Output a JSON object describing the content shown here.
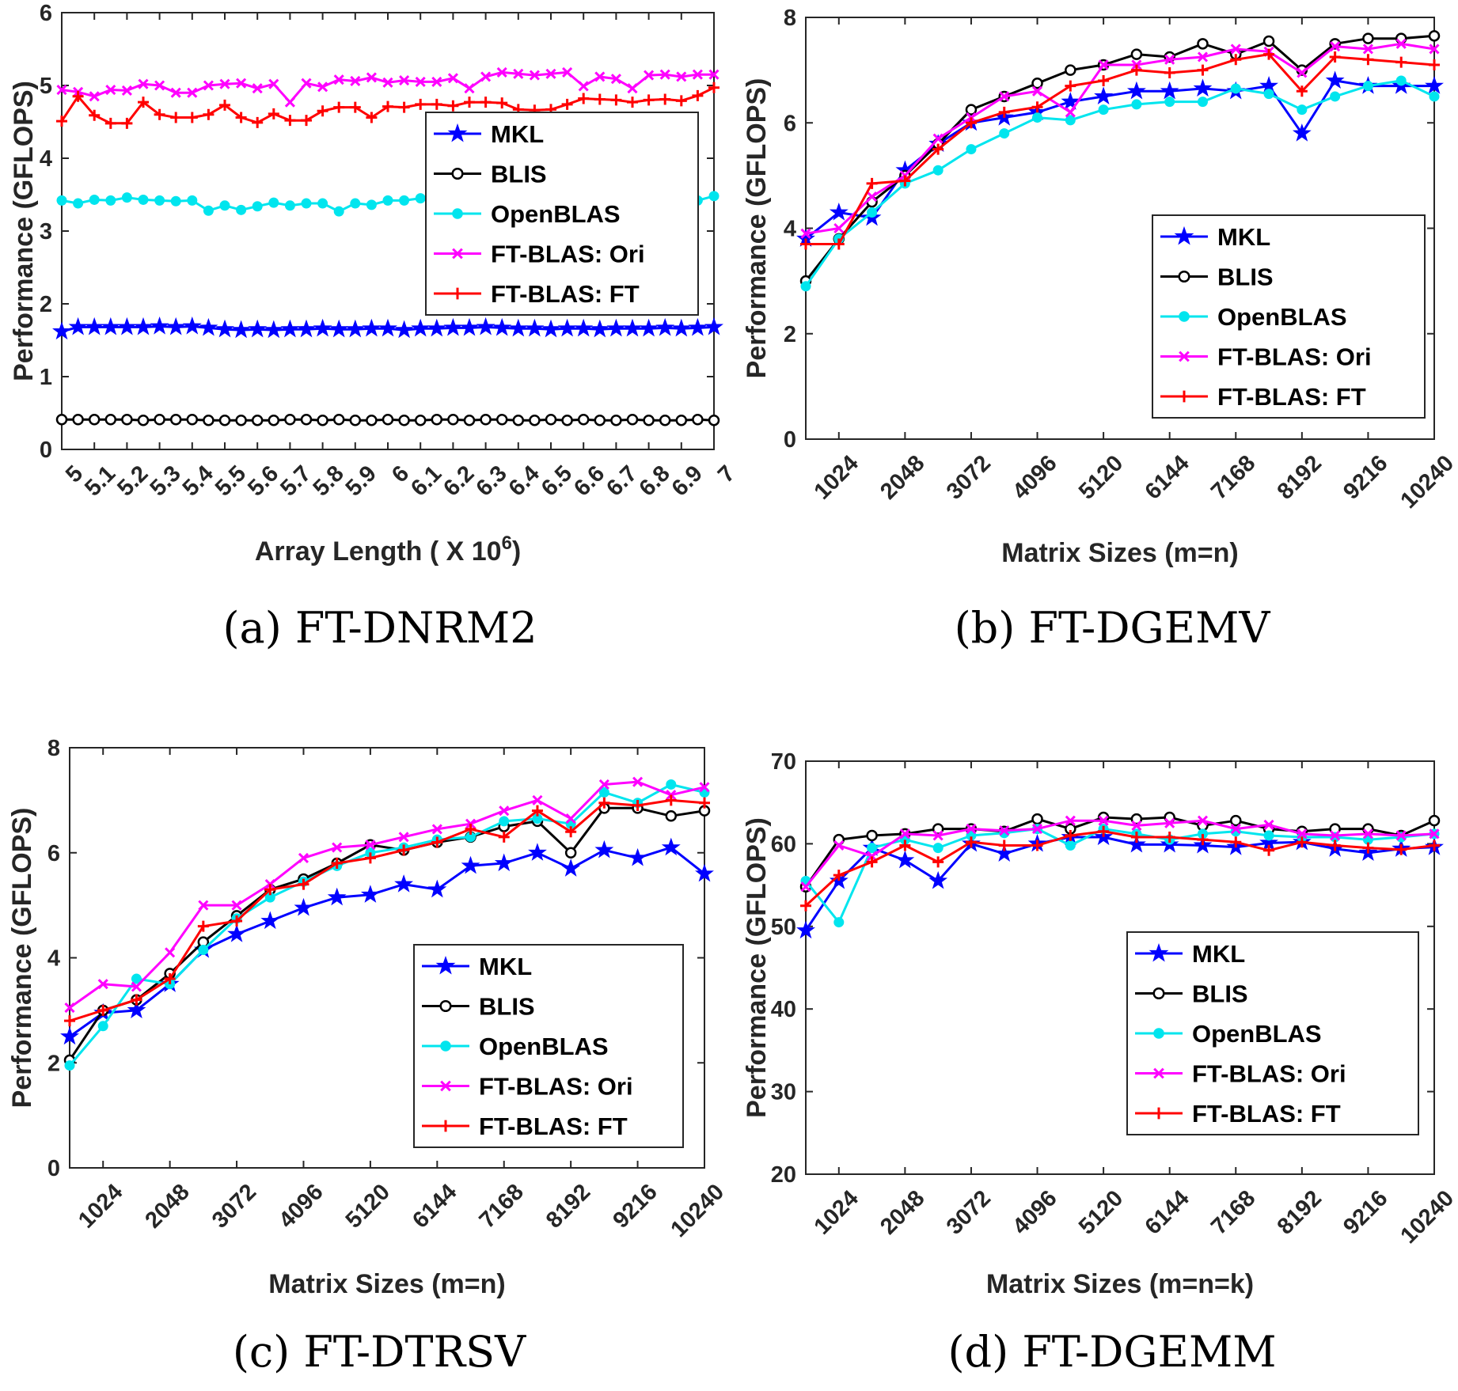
{
  "legend_labels": [
    "MKL",
    "BLIS",
    "OpenBLAS",
    "FT-BLAS: Ori",
    "FT-BLAS: FT"
  ],
  "series_colors": {
    "MKL": "#0000ff",
    "BLIS": "#000000",
    "OpenBLAS": "#00e5ee",
    "FT-BLAS: Ori": "#ff00ff",
    "FT-BLAS: FT": "#ff0000"
  },
  "chart_data": [
    {
      "type": "line",
      "caption": "(a) FT-DNRM2",
      "xlabel": "Array Length ( X 10",
      "xlabel_sup": "6",
      "xlabel_tail": ")",
      "ylabel": "Performance (GFLOPS)",
      "xlim": [
        5,
        7
      ],
      "ylim": [
        0,
        6
      ],
      "yticks": [
        0,
        1,
        2,
        3,
        4,
        5,
        6
      ],
      "xticks": [
        5,
        5.1,
        5.2,
        5.3,
        5.4,
        5.5,
        5.6,
        5.7,
        5.8,
        5.9,
        6,
        6.1,
        6.2,
        6.3,
        6.4,
        6.5,
        6.6,
        6.7,
        6.8,
        6.9,
        7
      ],
      "xtick_labels": [
        "5",
        "5.1",
        "5.2",
        "5.3",
        "5.4",
        "5.5",
        "5.6",
        "5.7",
        "5.8",
        "5.9",
        "6",
        "6.1",
        "6.2",
        "6.3",
        "6.4",
        "6.5",
        "6.6",
        "6.7",
        "6.8",
        "6.9",
        "7"
      ],
      "x": [
        5,
        5.05,
        5.1,
        5.15,
        5.2,
        5.25,
        5.3,
        5.35,
        5.4,
        5.45,
        5.5,
        5.55,
        5.6,
        5.65,
        5.7,
        5.75,
        5.8,
        5.85,
        5.9,
        5.95,
        6,
        6.05,
        6.1,
        6.15,
        6.2,
        6.25,
        6.3,
        6.35,
        6.4,
        6.45,
        6.5,
        6.55,
        6.6,
        6.65,
        6.7,
        6.75,
        6.8,
        6.85,
        6.9,
        6.95,
        7
      ],
      "series": [
        {
          "name": "MKL",
          "values": [
            1.62,
            1.68,
            1.68,
            1.68,
            1.68,
            1.68,
            1.69,
            1.68,
            1.69,
            1.67,
            1.65,
            1.64,
            1.65,
            1.64,
            1.65,
            1.65,
            1.66,
            1.65,
            1.65,
            1.66,
            1.66,
            1.64,
            1.66,
            1.66,
            1.67,
            1.67,
            1.68,
            1.67,
            1.66,
            1.66,
            1.65,
            1.66,
            1.66,
            1.65,
            1.66,
            1.66,
            1.66,
            1.67,
            1.66,
            1.67,
            1.68
          ]
        },
        {
          "name": "BLIS",
          "values": [
            0.41,
            0.41,
            0.41,
            0.41,
            0.41,
            0.4,
            0.41,
            0.41,
            0.41,
            0.4,
            0.4,
            0.4,
            0.4,
            0.4,
            0.41,
            0.41,
            0.4,
            0.41,
            0.4,
            0.4,
            0.41,
            0.4,
            0.4,
            0.41,
            0.41,
            0.4,
            0.41,
            0.41,
            0.4,
            0.4,
            0.41,
            0.4,
            0.41,
            0.4,
            0.4,
            0.41,
            0.4,
            0.4,
            0.4,
            0.41,
            0.4
          ]
        },
        {
          "name": "OpenBLAS",
          "values": [
            3.42,
            3.38,
            3.43,
            3.42,
            3.46,
            3.43,
            3.42,
            3.41,
            3.42,
            3.28,
            3.35,
            3.29,
            3.34,
            3.39,
            3.35,
            3.38,
            3.38,
            3.27,
            3.38,
            3.36,
            3.42,
            3.42,
            3.45,
            3.46,
            3.48,
            3.47,
            3.49,
            3.46,
            3.47,
            3.48,
            3.47,
            3.35,
            3.37,
            3.35,
            3.31,
            3.44,
            3.5,
            3.38,
            3.38,
            3.42,
            3.48
          ]
        },
        {
          "name": "FT-BLAS: Ori",
          "values": [
            4.94,
            4.91,
            4.85,
            4.94,
            4.93,
            5.02,
            5.0,
            4.9,
            4.9,
            5.0,
            5.02,
            5.03,
            4.96,
            5.02,
            4.77,
            5.03,
            4.98,
            5.08,
            5.06,
            5.11,
            5.04,
            5.07,
            5.05,
            5.05,
            5.1,
            4.96,
            5.12,
            5.18,
            5.16,
            5.14,
            5.16,
            5.18,
            4.99,
            5.12,
            5.09,
            4.96,
            5.14,
            5.15,
            5.12,
            5.15,
            5.15
          ]
        },
        {
          "name": "FT-BLAS: FT",
          "values": [
            4.51,
            4.85,
            4.59,
            4.48,
            4.48,
            4.77,
            4.6,
            4.56,
            4.56,
            4.6,
            4.73,
            4.56,
            4.49,
            4.61,
            4.52,
            4.52,
            4.65,
            4.7,
            4.7,
            4.56,
            4.71,
            4.7,
            4.74,
            4.74,
            4.72,
            4.77,
            4.77,
            4.76,
            4.67,
            4.66,
            4.67,
            4.74,
            4.82,
            4.81,
            4.8,
            4.77,
            4.8,
            4.81,
            4.79,
            4.86,
            4.97
          ]
        }
      ]
    },
    {
      "type": "line",
      "caption": "(b) FT-DGEMV",
      "xlabel": "Matrix Sizes (m=n)",
      "ylabel": "Performance (GFLOPS)",
      "xlim": [
        512,
        10240
      ],
      "ylim": [
        0,
        8
      ],
      "yticks": [
        0,
        2,
        4,
        6,
        8
      ],
      "xticks": [
        1024,
        2048,
        3072,
        4096,
        5120,
        6144,
        7168,
        8192,
        9216,
        10240
      ],
      "xtick_labels": [
        "1024",
        "2048",
        "3072",
        "4096",
        "5120",
        "6144",
        "7168",
        "8192",
        "9216",
        "10240"
      ],
      "x": [
        512,
        1024,
        1536,
        2048,
        2560,
        3072,
        3584,
        4096,
        4608,
        5120,
        5632,
        6144,
        6656,
        7168,
        7680,
        8192,
        8704,
        9216,
        9728,
        10240
      ],
      "series": [
        {
          "name": "MKL",
          "values": [
            3.8,
            4.3,
            4.2,
            5.1,
            5.6,
            6.0,
            6.1,
            6.2,
            6.4,
            6.5,
            6.6,
            6.6,
            6.65,
            6.6,
            6.7,
            5.8,
            6.8,
            6.7,
            6.7,
            6.7
          ]
        },
        {
          "name": "BLIS",
          "values": [
            3.0,
            3.8,
            4.5,
            5.0,
            5.6,
            6.25,
            6.5,
            6.75,
            7.0,
            7.1,
            7.3,
            7.25,
            7.5,
            7.3,
            7.55,
            7.0,
            7.5,
            7.6,
            7.6,
            7.65
          ]
        },
        {
          "name": "OpenBLAS",
          "values": [
            2.9,
            3.8,
            4.3,
            4.85,
            5.1,
            5.5,
            5.8,
            6.1,
            6.05,
            6.25,
            6.35,
            6.4,
            6.4,
            6.65,
            6.55,
            6.25,
            6.5,
            6.7,
            6.8,
            6.5
          ]
        },
        {
          "name": "FT-BLAS: Ori",
          "values": [
            3.9,
            4.0,
            4.6,
            5.0,
            5.7,
            6.1,
            6.5,
            6.6,
            6.2,
            7.1,
            7.1,
            7.2,
            7.25,
            7.4,
            7.35,
            6.95,
            7.45,
            7.4,
            7.5,
            7.4
          ]
        },
        {
          "name": "FT-BLAS: FT",
          "values": [
            3.7,
            3.7,
            4.85,
            4.9,
            5.5,
            6.0,
            6.2,
            6.3,
            6.7,
            6.8,
            7.0,
            6.95,
            7.0,
            7.2,
            7.3,
            6.6,
            7.25,
            7.2,
            7.15,
            7.1
          ]
        }
      ]
    },
    {
      "type": "line",
      "caption": "(c) FT-DTRSV",
      "xlabel": "Matrix Sizes (m=n)",
      "ylabel": "Performance (GFLOPS)",
      "xlim": [
        512,
        10240
      ],
      "ylim": [
        0,
        8
      ],
      "yticks": [
        0,
        2,
        4,
        6,
        8
      ],
      "xticks": [
        1024,
        2048,
        3072,
        4096,
        5120,
        6144,
        7168,
        8192,
        9216,
        10240
      ],
      "xtick_labels": [
        "1024",
        "2048",
        "3072",
        "4096",
        "5120",
        "6144",
        "7168",
        "8192",
        "9216",
        "10240"
      ],
      "x": [
        512,
        1024,
        1536,
        2048,
        2560,
        3072,
        3584,
        4096,
        4608,
        5120,
        5632,
        6144,
        6656,
        7168,
        7680,
        8192,
        8704,
        9216,
        9728,
        10240
      ],
      "series": [
        {
          "name": "MKL",
          "values": [
            2.5,
            2.95,
            3.0,
            3.5,
            4.15,
            4.45,
            4.7,
            4.95,
            5.15,
            5.2,
            5.4,
            5.3,
            5.75,
            5.8,
            6.0,
            5.7,
            6.05,
            5.9,
            6.1,
            5.6
          ]
        },
        {
          "name": "BLIS",
          "values": [
            2.05,
            3.0,
            3.2,
            3.7,
            4.3,
            4.8,
            5.3,
            5.5,
            5.8,
            6.15,
            6.05,
            6.2,
            6.3,
            6.5,
            6.6,
            6.0,
            6.85,
            6.85,
            6.7,
            6.8
          ]
        },
        {
          "name": "OpenBLAS",
          "values": [
            1.95,
            2.7,
            3.6,
            3.5,
            4.15,
            4.75,
            5.15,
            5.45,
            5.75,
            6.0,
            6.1,
            6.25,
            6.3,
            6.6,
            6.65,
            6.55,
            7.15,
            6.95,
            7.3,
            7.15
          ]
        },
        {
          "name": "FT-BLAS: Ori",
          "values": [
            3.05,
            3.5,
            3.45,
            4.1,
            5.0,
            5.0,
            5.4,
            5.9,
            6.1,
            6.15,
            6.3,
            6.45,
            6.55,
            6.8,
            7.0,
            6.65,
            7.3,
            7.35,
            7.1,
            7.25
          ]
        },
        {
          "name": "FT-BLAS: FT",
          "values": [
            2.8,
            3.0,
            3.2,
            3.6,
            4.6,
            4.7,
            5.3,
            5.4,
            5.8,
            5.9,
            6.05,
            6.2,
            6.45,
            6.3,
            6.8,
            6.4,
            6.95,
            6.9,
            7.0,
            6.95
          ]
        }
      ]
    },
    {
      "type": "line",
      "caption": "(d) FT-DGEMM",
      "xlabel": "Matrix Sizes (m=n=k)",
      "ylabel": "Performance (GFLOPS)",
      "xlim": [
        512,
        10240
      ],
      "ylim": [
        20,
        70
      ],
      "yticks": [
        20,
        30,
        40,
        50,
        60,
        70
      ],
      "xticks": [
        1024,
        2048,
        3072,
        4096,
        5120,
        6144,
        7168,
        8192,
        9216,
        10240
      ],
      "xtick_labels": [
        "1024",
        "2048",
        "3072",
        "4096",
        "5120",
        "6144",
        "7168",
        "8192",
        "9216",
        "10240"
      ],
      "x": [
        512,
        1024,
        1536,
        2048,
        2560,
        3072,
        3584,
        4096,
        4608,
        5120,
        5632,
        6144,
        6656,
        7168,
        7680,
        8192,
        8704,
        9216,
        9728,
        10240
      ],
      "series": [
        {
          "name": "MKL",
          "values": [
            49.5,
            55.5,
            59.5,
            58.0,
            55.5,
            60.0,
            58.8,
            60.0,
            60.8,
            60.8,
            59.9,
            59.9,
            59.8,
            59.6,
            60.1,
            60.2,
            59.4,
            58.9,
            59.4,
            59.6
          ]
        },
        {
          "name": "BLIS",
          "values": [
            54.8,
            60.5,
            61.0,
            61.2,
            61.8,
            61.8,
            61.5,
            63.0,
            61.8,
            63.2,
            63.0,
            63.2,
            62.2,
            62.8,
            61.8,
            61.5,
            61.8,
            61.8,
            61.0,
            62.8
          ]
        },
        {
          "name": "OpenBLAS",
          "values": [
            55.5,
            50.5,
            59.5,
            60.5,
            59.5,
            61.0,
            61.3,
            61.8,
            59.8,
            61.8,
            61.2,
            60.5,
            61.2,
            61.5,
            61.0,
            60.8,
            60.8,
            60.5,
            60.8,
            61.2
          ]
        },
        {
          "name": "FT-BLAS: Ori",
          "values": [
            54.8,
            59.8,
            58.5,
            61.2,
            61.0,
            61.8,
            61.6,
            61.8,
            62.8,
            62.8,
            62.2,
            62.5,
            62.8,
            61.8,
            62.3,
            61.2,
            61.0,
            61.2,
            61.0,
            61.2
          ]
        },
        {
          "name": "FT-BLAS: FT",
          "values": [
            52.5,
            56.2,
            57.8,
            59.8,
            57.8,
            60.2,
            59.8,
            59.8,
            61.0,
            61.5,
            60.8,
            60.8,
            60.5,
            60.2,
            59.2,
            60.2,
            59.8,
            59.5,
            59.3,
            59.8
          ]
        }
      ]
    }
  ]
}
